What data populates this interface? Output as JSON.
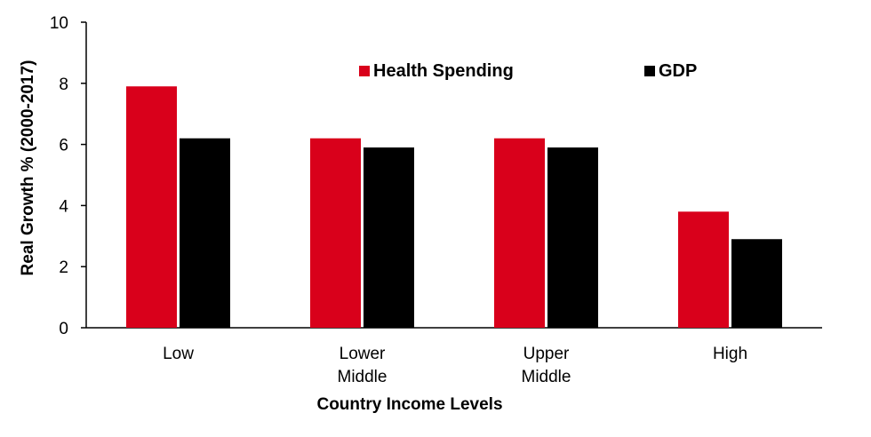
{
  "chart_data": {
    "type": "bar",
    "title": "",
    "xlabel": "Country Income Levels",
    "ylabel": "Real Growth % (2000-2017)",
    "ylim": [
      0,
      10
    ],
    "yticks": [
      0,
      2,
      4,
      6,
      8,
      10
    ],
    "categories": [
      [
        "Low"
      ],
      [
        "Lower",
        "Middle"
      ],
      [
        "Upper",
        "Middle"
      ],
      [
        "High"
      ]
    ],
    "series": [
      {
        "name": "Health Spending",
        "color": "#d9001b",
        "values": [
          7.9,
          6.2,
          6.2,
          3.8
        ]
      },
      {
        "name": "GDP",
        "color": "#000000",
        "values": [
          6.2,
          5.9,
          5.9,
          2.9
        ]
      }
    ],
    "grid": false,
    "legend": "top-center"
  }
}
